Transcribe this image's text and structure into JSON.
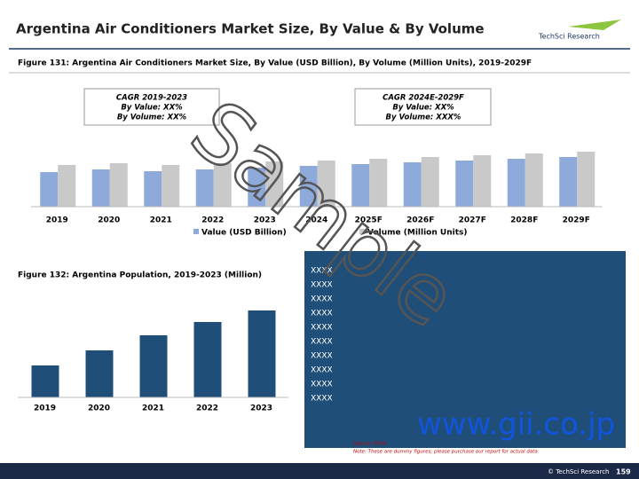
{
  "header": {
    "title": "Argentina Air Conditioners Market Size, By Value & By Volume",
    "logo": "TechSci Research"
  },
  "chart_data": [
    {
      "type": "bar",
      "title": "Figure 131: Argentina Air Conditioners Market Size, By Value (USD Billion), By Volume (Million Units), 2019-2029F",
      "categories": [
        "2019",
        "2020",
        "2021",
        "2022",
        "2023",
        "2024",
        "2025F",
        "2026F",
        "2027F",
        "2028F",
        "2029F"
      ],
      "series": [
        {
          "name": "Value (USD Billion)",
          "color": "#8eaadb",
          "values": [
            39,
            42,
            40,
            42,
            44,
            46,
            48,
            50,
            52,
            54,
            56
          ]
        },
        {
          "name": "Volume (Million Units)",
          "color": "#c9c9c9",
          "values": [
            47,
            49,
            47,
            49,
            51,
            52,
            54,
            56,
            58,
            60,
            62
          ]
        }
      ],
      "annotations": [
        [
          "CAGR 2019-2023",
          "By Value: XX%",
          "By Volume: XX%"
        ],
        [
          "CAGR 2024E-2029F",
          "By Value: XX%",
          "By Volume: XXX%"
        ]
      ]
    },
    {
      "type": "bar",
      "title": "Figure 132: Argentina Population, 2019-2023 (Million)",
      "categories": [
        "2019",
        "2020",
        "2021",
        "2022",
        "2023"
      ],
      "color": "#1f4e79",
      "values": [
        36,
        53,
        70,
        85,
        98
      ]
    }
  ],
  "text_box": {
    "lines": [
      "XXXX",
      "XXXX",
      "XXXX",
      "XXXX",
      "XXXX",
      "XXXX",
      "XXXX",
      "XXXX",
      "XXXX",
      "XXXX"
    ],
    "source": "Source: XXXX",
    "note": "Note: These are dummy figures; please purchase our report for actual data"
  },
  "watermark": {
    "sample": "Sample",
    "site": "www.gii.co.jp"
  },
  "footer": {
    "copyright": "© TechSci Research",
    "page": "159"
  }
}
